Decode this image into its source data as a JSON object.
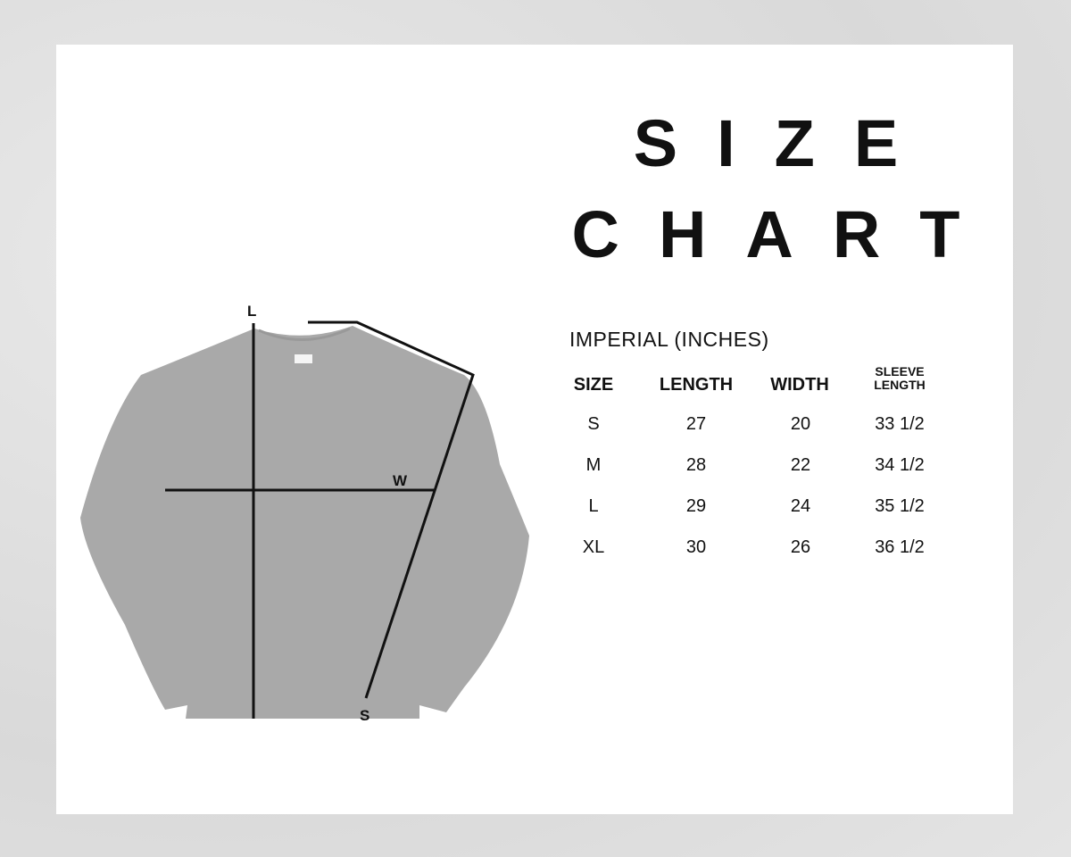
{
  "title": {
    "line1": "SIZE",
    "line2": "CHART"
  },
  "units": "IMPERIAL (INCHES)",
  "diagram": {
    "length_label": "L",
    "width_label": "W",
    "sleeve_label": "S",
    "garment_color": "#a9a9a9"
  },
  "table": {
    "headers": [
      "SIZE",
      "LENGTH",
      "WIDTH",
      "SLEEVE LENGTH"
    ],
    "rows": [
      [
        "S",
        "27",
        "20",
        "33 1/2"
      ],
      [
        "M",
        "28",
        "22",
        "34 1/2"
      ],
      [
        "L",
        "29",
        "24",
        "35 1/2"
      ],
      [
        "XL",
        "30",
        "26",
        "36 1/2"
      ]
    ]
  }
}
